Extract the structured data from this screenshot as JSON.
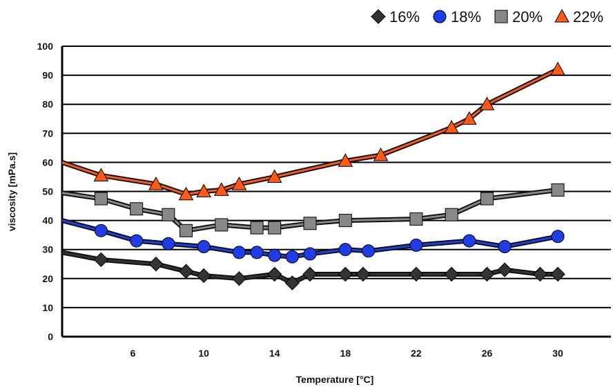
{
  "chart_data": {
    "type": "line",
    "xlabel": "Temperature [°C]",
    "ylabel": "viscosity [mPa.s]",
    "xlim": [
      2,
      33
    ],
    "ylim": [
      0,
      100
    ],
    "x_ticks": [
      "6",
      "10",
      "14",
      "18",
      "22",
      "26",
      "30"
    ],
    "x_tick_values": [
      6,
      10,
      14,
      18,
      22,
      26,
      30
    ],
    "y_ticks": [
      "0",
      "10",
      "20",
      "30",
      "40",
      "50",
      "60",
      "70",
      "80",
      "90",
      "100"
    ],
    "y_tick_values": [
      0,
      10,
      20,
      30,
      40,
      50,
      60,
      70,
      80,
      90,
      100
    ],
    "grid": "horizontal",
    "legend_position": "top-right",
    "series": [
      {
        "name": "16%",
        "color": "#333333",
        "marker": "diamond",
        "points": [
          [
            2,
            29
          ],
          [
            4.2,
            26.5
          ],
          [
            7.3,
            25
          ],
          [
            9,
            22.5
          ],
          [
            10,
            21
          ],
          [
            12,
            20
          ],
          [
            14,
            21.5
          ],
          [
            15,
            18.5
          ],
          [
            16,
            21.5
          ],
          [
            18,
            21.5
          ],
          [
            19,
            21.5
          ],
          [
            22,
            21.5
          ],
          [
            24,
            21.5
          ],
          [
            26,
            21.5
          ],
          [
            27,
            23
          ],
          [
            29,
            21.5
          ],
          [
            30,
            21.5
          ]
        ]
      },
      {
        "name": "18%",
        "color": "#1f3de6",
        "marker": "circle",
        "points": [
          [
            2,
            40
          ],
          [
            4.2,
            36.5
          ],
          [
            6.2,
            33
          ],
          [
            8,
            32
          ],
          [
            10,
            31
          ],
          [
            12,
            29
          ],
          [
            13,
            29
          ],
          [
            14,
            28
          ],
          [
            15,
            27.5
          ],
          [
            16,
            28.5
          ],
          [
            18,
            30
          ],
          [
            19.3,
            29.5
          ],
          [
            22,
            31.5
          ],
          [
            25,
            33
          ],
          [
            27,
            31
          ],
          [
            30,
            34.5
          ]
        ]
      },
      {
        "name": "20%",
        "color": "#888888",
        "marker": "square",
        "points": [
          [
            2,
            49.5
          ],
          [
            4.2,
            47.5
          ],
          [
            6.2,
            44
          ],
          [
            8,
            42
          ],
          [
            9,
            36.5
          ],
          [
            11,
            38.5
          ],
          [
            13,
            37.5
          ],
          [
            14,
            37.5
          ],
          [
            16,
            39
          ],
          [
            18,
            40
          ],
          [
            22,
            40.5
          ],
          [
            24,
            42
          ],
          [
            26,
            47.5
          ],
          [
            30,
            50.5
          ]
        ]
      },
      {
        "name": "22%",
        "color": "#ff5a14",
        "marker": "triangle",
        "points": [
          [
            2,
            60
          ],
          [
            4.2,
            55.5
          ],
          [
            7.3,
            52.5
          ],
          [
            9,
            49
          ],
          [
            10,
            50
          ],
          [
            11,
            50.5
          ],
          [
            12,
            52.5
          ],
          [
            14,
            55
          ],
          [
            18,
            60.5
          ],
          [
            20,
            62.5
          ],
          [
            24,
            72
          ],
          [
            25,
            75
          ],
          [
            26,
            80
          ],
          [
            30,
            92
          ]
        ]
      }
    ]
  }
}
